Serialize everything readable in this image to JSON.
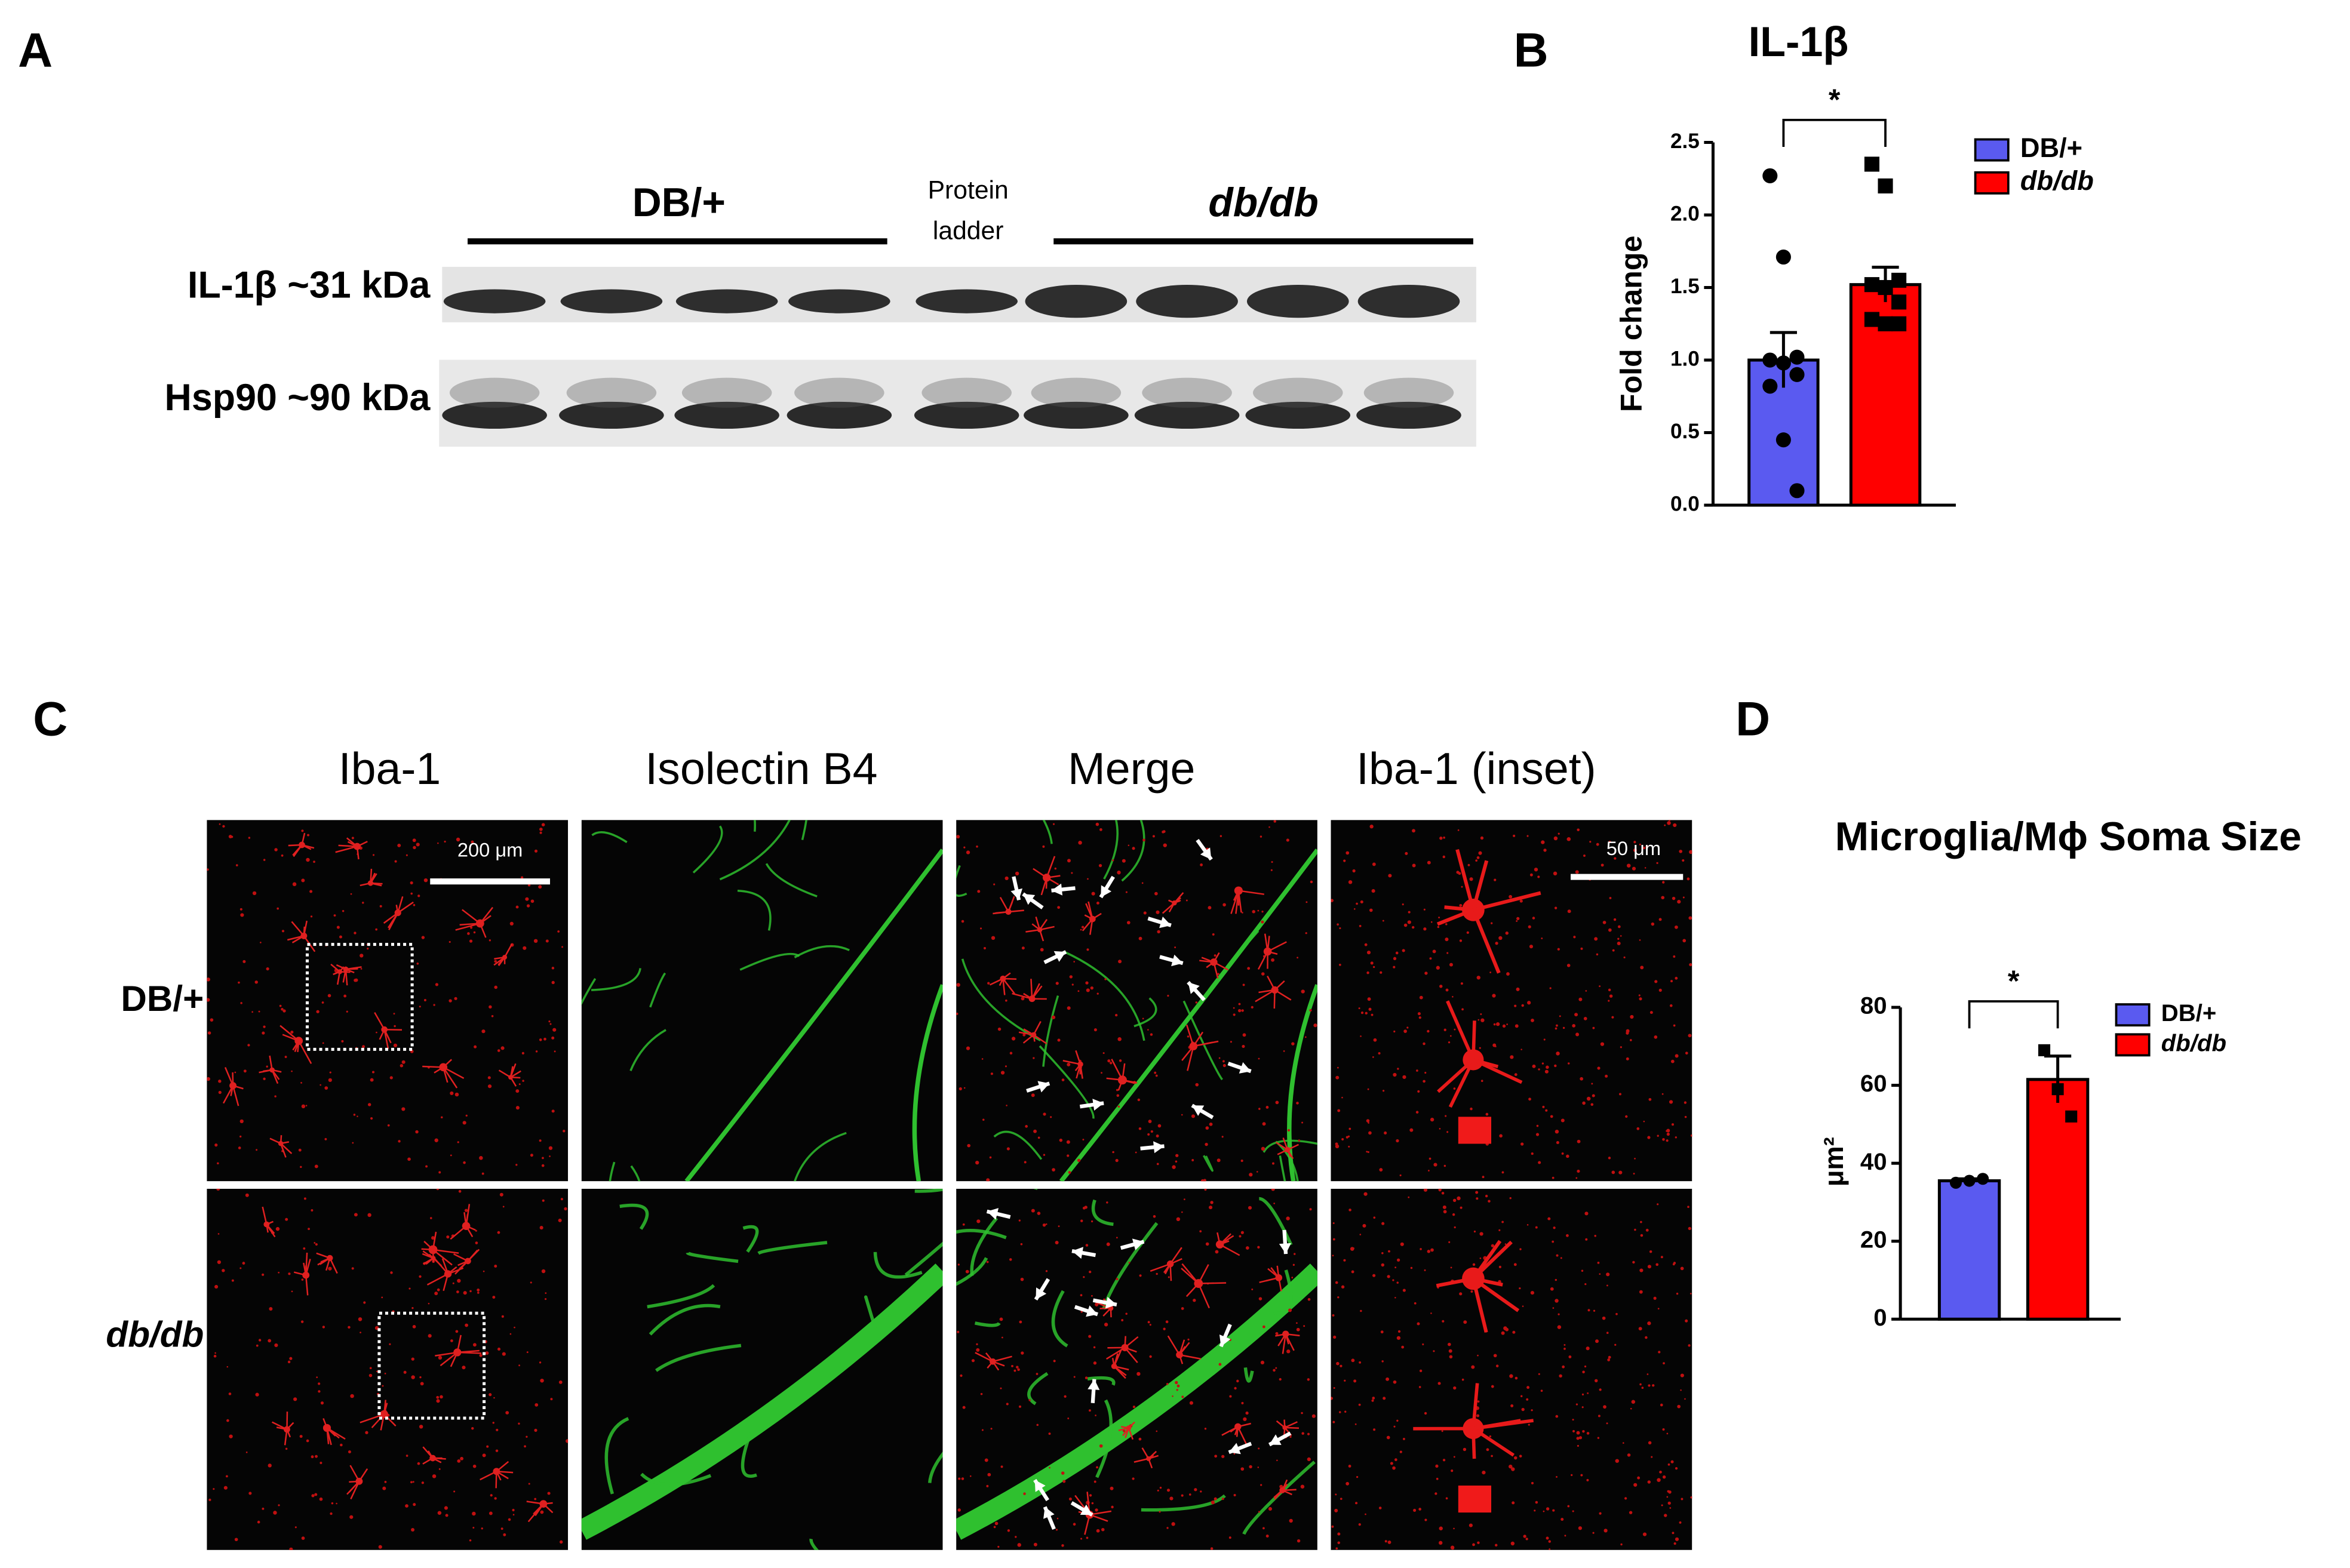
{
  "panel_labels": [
    "A",
    "B",
    "C",
    "D"
  ],
  "western_blot": {
    "groups": [
      "DB/+",
      "db/db"
    ],
    "ladder_label": [
      "Protein",
      "ladder"
    ],
    "rows": [
      "IL-1β ~31 kDa",
      "Hsp90 ~90 kDa"
    ]
  },
  "images": {
    "columns": [
      "Iba-1",
      "Isolectin B4",
      "Merge",
      "Iba-1 (inset)"
    ],
    "rows": [
      "DB/+",
      "db/db"
    ],
    "scale_bars": [
      "200 μm",
      "50 μm"
    ]
  },
  "chart_data": [
    {
      "type": "bar",
      "title": "IL-1β",
      "y_label": "Fold change",
      "annotation": "*",
      "ylim": [
        0,
        2.5
      ],
      "yticks": [
        {
          "value": 0,
          "label": "0.0"
        },
        {
          "value": 0.5,
          "label": "0.5"
        },
        {
          "value": 1,
          "label": "1.0"
        },
        {
          "value": 1.5,
          "label": "1.5"
        },
        {
          "value": 2,
          "label": "2.0"
        },
        {
          "value": 2.5,
          "label": "2.5"
        }
      ],
      "series": [
        {
          "name": "DB/+",
          "color": "#5a5af0",
          "values": [
            1.0
          ],
          "errors": [
            0.19
          ],
          "points": [
            2.27,
            1.71,
            1.02,
            1.0,
            0.98,
            0.9,
            0.82,
            0.45,
            0.1
          ]
        },
        {
          "name": "db/db",
          "color": "#ff0000",
          "values": [
            1.52
          ],
          "errors": [
            0.12
          ],
          "points": [
            2.35,
            2.2,
            1.55,
            1.52,
            1.5,
            1.4,
            1.28,
            1.25,
            1.25
          ]
        }
      ]
    },
    {
      "type": "bar",
      "title": "Microglia/Mϕ Soma Size",
      "y_label": "μm²",
      "annotation": "*",
      "ylim": [
        0,
        80
      ],
      "yticks": [
        0,
        20,
        40,
        60,
        80
      ],
      "series": [
        {
          "name": "DB/+",
          "color": "#5a5af0",
          "values": [
            35.5
          ],
          "errors": [
            0.5
          ],
          "points": [
            35,
            35.5,
            36
          ]
        },
        {
          "name": "db/db",
          "color": "#ff0000",
          "values": [
            61.5
          ],
          "errors": [
            6
          ],
          "points": [
            69,
            59,
            52
          ]
        }
      ]
    }
  ]
}
